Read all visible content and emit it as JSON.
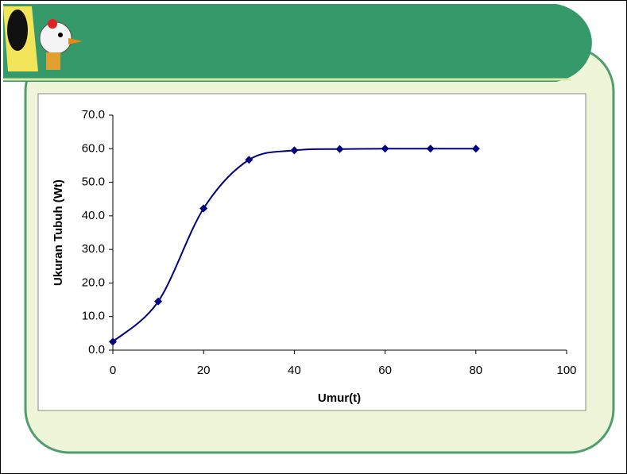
{
  "chart_data": {
    "type": "line",
    "smooth": true,
    "marker": "diamond",
    "x_label": "Umur(t)",
    "y_label": "Ukuran Tubuh (Wt)",
    "x": [
      0,
      10,
      20,
      30,
      40,
      50,
      60,
      70,
      80
    ],
    "values": [
      2.5,
      14.5,
      42.2,
      56.7,
      59.5,
      59.9,
      60.0,
      60.0,
      60.0
    ],
    "color": "#000080",
    "xlim": [
      0,
      100
    ],
    "xticks": [
      0,
      20,
      40,
      60,
      80,
      100
    ],
    "ylim": [
      0,
      70
    ],
    "yticks": [
      {
        "value": 0,
        "label": "0.0"
      },
      {
        "value": 10,
        "label": "10.0"
      },
      {
        "value": 20,
        "label": "20.0"
      },
      {
        "value": 30,
        "label": "30.0"
      },
      {
        "value": 40,
        "label": "40.0"
      },
      {
        "value": 50,
        "label": "50.0"
      },
      {
        "value": 60,
        "label": "60.0"
      },
      {
        "value": 70,
        "label": "70.0"
      }
    ],
    "grid": false
  }
}
